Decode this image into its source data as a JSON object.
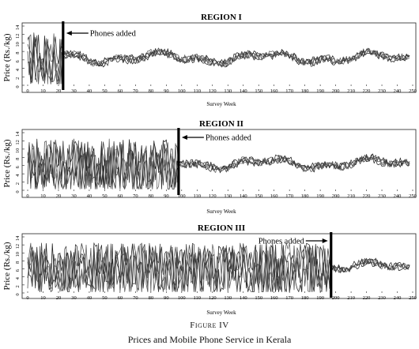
{
  "figure": {
    "label": "Figure IV",
    "title": "Prices and Mobile Phone Service in Kerala"
  },
  "chart_data": [
    {
      "type": "line",
      "title": "REGION I",
      "xlabel": "Survey Week",
      "ylabel": "Price (Rs./kg)",
      "xlim": [
        0,
        250
      ],
      "ylim": [
        0,
        14
      ],
      "xticks": [
        0,
        10,
        20,
        30,
        40,
        50,
        60,
        70,
        80,
        90,
        100,
        110,
        120,
        130,
        140,
        150,
        160,
        170,
        180,
        190,
        200,
        210,
        220,
        230,
        240,
        250
      ],
      "yticks": [
        0,
        2,
        4,
        6,
        8,
        10,
        12,
        14
      ],
      "annotation": {
        "text": "Phones added",
        "x": 23
      },
      "series_count": 5,
      "pre_level": 6.0,
      "post_level": 6.5,
      "pre_spread": 6.5,
      "post_spread": 0.9
    },
    {
      "type": "line",
      "title": "REGION II",
      "xlabel": "Survey Week",
      "ylabel": "Price (Rs./kg)",
      "xlim": [
        0,
        250
      ],
      "ylim": [
        0,
        14
      ],
      "xticks": [
        0,
        10,
        20,
        30,
        40,
        50,
        60,
        70,
        80,
        90,
        100,
        110,
        120,
        130,
        140,
        150,
        160,
        170,
        180,
        190,
        200,
        210,
        220,
        230,
        240,
        250
      ],
      "yticks": [
        0,
        2,
        4,
        6,
        8,
        10,
        12,
        14
      ],
      "annotation": {
        "text": "Phones added",
        "x": 98
      },
      "series_count": 5,
      "pre_level": 6.0,
      "post_level": 6.5,
      "pre_spread": 6.5,
      "post_spread": 0.9
    },
    {
      "type": "line",
      "title": "REGION III",
      "xlabel": "Survey Week",
      "ylabel": "Price (Rs./kg)",
      "xlim": [
        0,
        250
      ],
      "ylim": [
        0,
        14
      ],
      "xticks": [
        0,
        10,
        20,
        30,
        40,
        50,
        60,
        70,
        80,
        90,
        100,
        110,
        120,
        130,
        140,
        150,
        160,
        170,
        180,
        190,
        200,
        210,
        220,
        230,
        240,
        250
      ],
      "yticks": [
        0,
        2,
        4,
        6,
        8,
        10,
        12,
        14
      ],
      "annotation": {
        "text": "Phones added",
        "x": 197
      },
      "series_count": 5,
      "pre_level": 6.0,
      "post_level": 6.5,
      "pre_spread": 6.5,
      "post_spread": 0.9
    }
  ]
}
